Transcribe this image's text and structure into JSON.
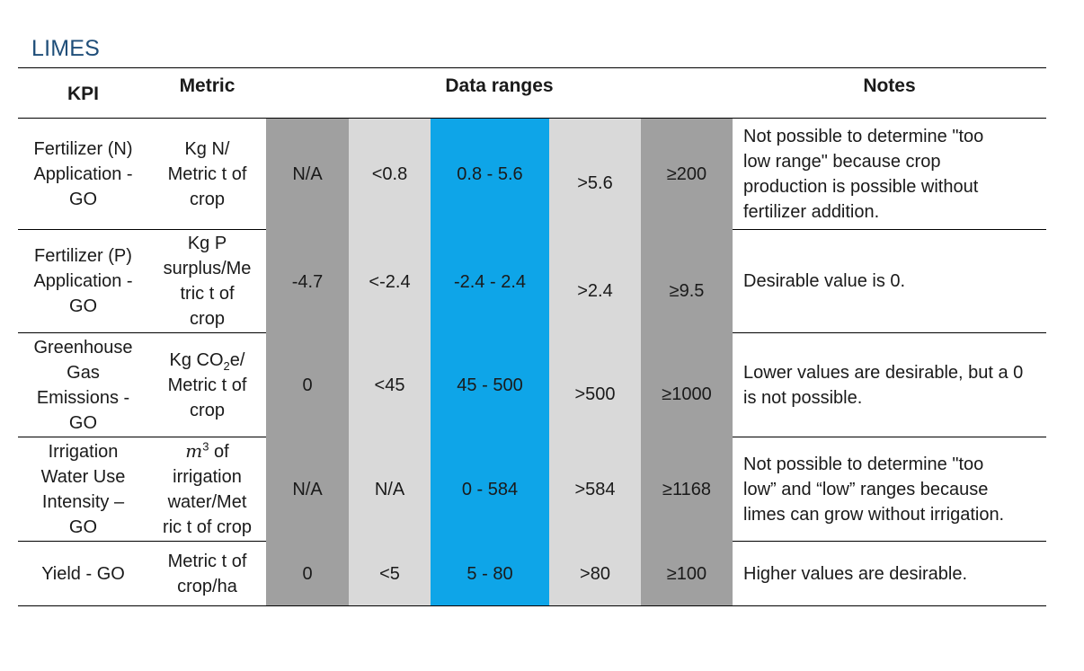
{
  "title": "LIMES",
  "headers": {
    "kpi": "KPI",
    "metric": "Metric",
    "data_ranges": "Data ranges",
    "notes": "Notes"
  },
  "rows": [
    {
      "kpi": [
        "Fertilizer (N)",
        "Application -",
        "GO"
      ],
      "metric": [
        "Kg N/",
        "Metric t of",
        "crop"
      ],
      "ranges": [
        "N/A",
        "<0.8",
        "0.8 - 5.6",
        ">5.6",
        "≥200"
      ],
      "notes": [
        "Not possible to determine \"too",
        "low range\" because crop",
        "production is possible without",
        "fertilizer addition."
      ]
    },
    {
      "kpi": [
        "Fertilizer (P)",
        "Application -",
        "GO"
      ],
      "metric": [
        "Kg P",
        "surplus/Me",
        "tric t of",
        "crop"
      ],
      "ranges": [
        "-4.7",
        "<-2.4",
        "-2.4 - 2.4",
        ">2.4",
        "≥9.5"
      ],
      "notes": [
        "Desirable value is 0."
      ]
    },
    {
      "kpi": [
        "Greenhouse",
        "Gas",
        "Emissions -",
        "GO"
      ],
      "metric": {
        "l1_a": "Kg CO",
        "l1_sub": "2",
        "l1_b": "e/",
        "l2": "Metric t of",
        "l3": "crop"
      },
      "ranges": [
        "0",
        "<45",
        "45 - 500",
        ">500",
        "≥1000"
      ],
      "notes": [
        "Lower values are desirable, but a 0",
        "is not possible."
      ]
    },
    {
      "kpi": [
        "Irrigation",
        "Water Use",
        "Intensity –",
        "GO"
      ],
      "metric": {
        "l1_m": "m",
        "l1_sup": "3",
        "l1_b": " of",
        "l2": "irrigation",
        "l3": "water/Met",
        "l4": "ric t of crop"
      },
      "ranges": [
        "N/A",
        "N/A",
        "0 - 584",
        ">584",
        "≥1168"
      ],
      "notes": [
        "Not possible to determine \"too",
        "low” and “low” ranges because",
        "limes can grow without irrigation."
      ]
    },
    {
      "kpi": [
        "Yield - GO"
      ],
      "metric": [
        "Metric t of",
        "crop/ha"
      ],
      "ranges": [
        "0",
        "<5",
        "5 - 80",
        ">80",
        "≥100"
      ],
      "notes": [
        "Higher values are desirable."
      ]
    }
  ],
  "colors": {
    "range_dark": "#a0a0a0",
    "range_light": "#d9d9d9",
    "range_target": "#0ea5e8",
    "title": "#1f4e79"
  }
}
